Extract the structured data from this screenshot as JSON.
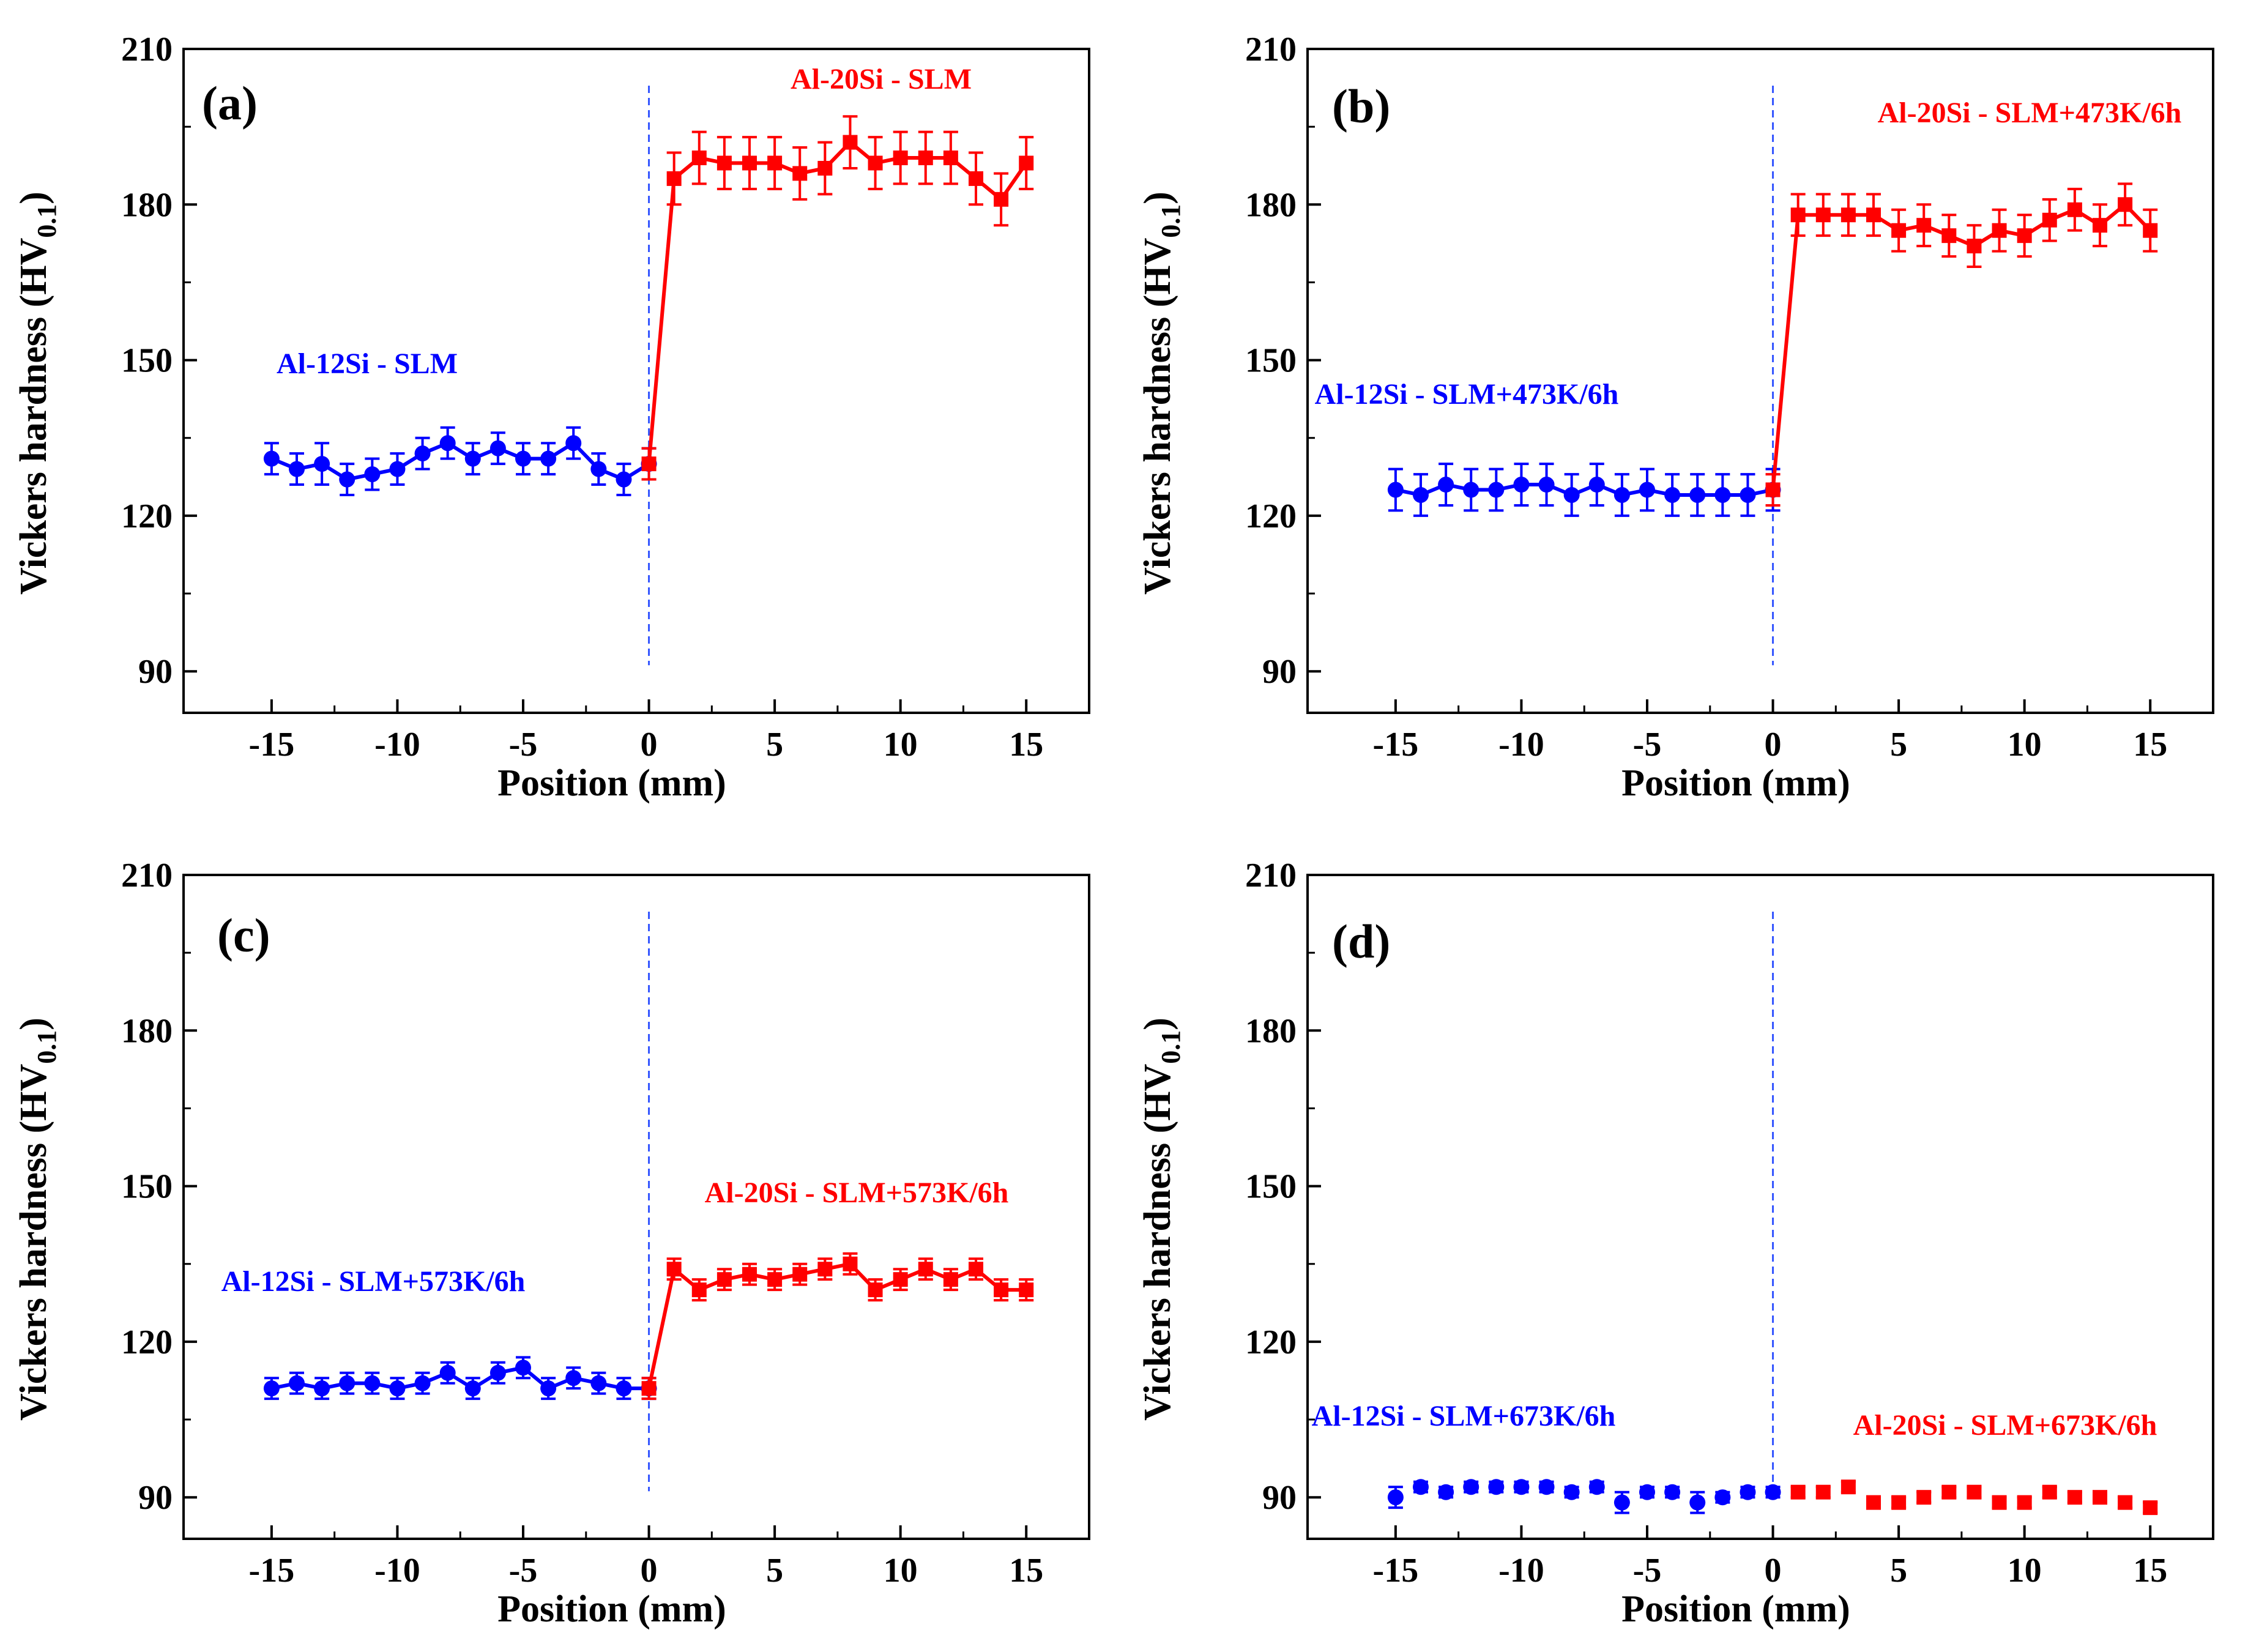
{
  "chart_data": [
    {
      "type": "line",
      "panel_tag": "(a)",
      "xlabel": "Position (mm)",
      "ylabel_main": "Vickers hardness (HV",
      "ylabel_sub": "0.1",
      "ylabel_close": ")",
      "xlim": [
        -18.5,
        17.5
      ],
      "ylim": [
        82,
        210
      ],
      "xticks": [
        -15,
        -10,
        -5,
        0,
        5,
        10,
        15
      ],
      "yticks": [
        90,
        120,
        150,
        180,
        210
      ],
      "grid": false,
      "divider_x": 0,
      "series": [
        {
          "name": "Al-12Si - SLM",
          "color": "#0000ff",
          "marker": "circle",
          "x": [
            -15,
            -14,
            -13,
            -12,
            -11,
            -10,
            -9,
            -8,
            -7,
            -6,
            -5,
            -4,
            -3,
            -2,
            -1,
            0
          ],
          "values": [
            131,
            129,
            130,
            127,
            128,
            129,
            132,
            134,
            131,
            133,
            131,
            131,
            134,
            129,
            127,
            130
          ],
          "errors": [
            3,
            3,
            4,
            3,
            3,
            3,
            3,
            3,
            3,
            3,
            3,
            3,
            3,
            3,
            3,
            3
          ]
        },
        {
          "name": "Al-20Si - SLM",
          "color": "#ff0000",
          "marker": "square",
          "x": [
            0,
            1,
            2,
            3,
            4,
            5,
            6,
            7,
            8,
            9,
            10,
            11,
            12,
            13,
            14,
            15
          ],
          "values": [
            130,
            185,
            189,
            188,
            188,
            188,
            186,
            187,
            192,
            188,
            189,
            189,
            189,
            185,
            181,
            188
          ],
          "errors": [
            3,
            5,
            5,
            5,
            5,
            5,
            5,
            5,
            5,
            5,
            5,
            5,
            5,
            5,
            5,
            5
          ]
        }
      ]
    },
    {
      "type": "line",
      "panel_tag": "(b)",
      "xlabel": "Position (mm)",
      "ylabel_main": "Vickers hardness (HV",
      "ylabel_sub": "0.1",
      "ylabel_close": ")",
      "xlim": [
        -18.5,
        17.5
      ],
      "ylim": [
        82,
        210
      ],
      "xticks": [
        -15,
        -10,
        -5,
        0,
        5,
        10,
        15
      ],
      "yticks": [
        90,
        120,
        150,
        180,
        210
      ],
      "grid": false,
      "divider_x": 0,
      "series": [
        {
          "name": "Al-12Si - SLM+473K/6h",
          "color": "#0000ff",
          "marker": "circle",
          "x": [
            -15,
            -14,
            -13,
            -12,
            -11,
            -10,
            -9,
            -8,
            -7,
            -6,
            -5,
            -4,
            -3,
            -2,
            -1,
            0
          ],
          "values": [
            125,
            124,
            126,
            125,
            125,
            126,
            126,
            124,
            126,
            124,
            125,
            124,
            124,
            124,
            124,
            125
          ],
          "errors": [
            4,
            4,
            4,
            4,
            4,
            4,
            4,
            4,
            4,
            4,
            4,
            4,
            4,
            4,
            4,
            4
          ]
        },
        {
          "name": "Al-20Si - SLM+473K/6h",
          "color": "#ff0000",
          "marker": "square",
          "x": [
            0,
            1,
            2,
            3,
            4,
            5,
            6,
            7,
            8,
            9,
            10,
            11,
            12,
            13,
            14,
            15
          ],
          "values": [
            125,
            178,
            178,
            178,
            178,
            175,
            176,
            174,
            172,
            175,
            174,
            177,
            179,
            176,
            180,
            175
          ],
          "errors": [
            3,
            4,
            4,
            4,
            4,
            4,
            4,
            4,
            4,
            4,
            4,
            4,
            4,
            4,
            4,
            4
          ]
        }
      ]
    },
    {
      "type": "line",
      "panel_tag": "(c)",
      "xlabel": "Position (mm)",
      "ylabel_main": "Vickers hardness (HV",
      "ylabel_sub": "0.1",
      "ylabel_close": ")",
      "xlim": [
        -18.5,
        17.5
      ],
      "ylim": [
        82,
        210
      ],
      "xticks": [
        -15,
        -10,
        -5,
        0,
        5,
        10,
        15
      ],
      "yticks": [
        90,
        120,
        150,
        180,
        210
      ],
      "grid": false,
      "divider_x": 0,
      "series": [
        {
          "name": "Al-12Si - SLM+573K/6h",
          "color": "#0000ff",
          "marker": "circle",
          "x": [
            -15,
            -14,
            -13,
            -12,
            -11,
            -10,
            -9,
            -8,
            -7,
            -6,
            -5,
            -4,
            -3,
            -2,
            -1,
            0
          ],
          "values": [
            111,
            112,
            111,
            112,
            112,
            111,
            112,
            114,
            111,
            114,
            115,
            111,
            113,
            112,
            111,
            111
          ],
          "errors": [
            2,
            2,
            2,
            2,
            2,
            2,
            2,
            2,
            2,
            2,
            2,
            2,
            2,
            2,
            2,
            2
          ]
        },
        {
          "name": "Al-20Si - SLM+573K/6h",
          "color": "#ff0000",
          "marker": "square",
          "x": [
            0,
            1,
            2,
            3,
            4,
            5,
            6,
            7,
            8,
            9,
            10,
            11,
            12,
            13,
            14,
            15
          ],
          "values": [
            111,
            134,
            130,
            132,
            133,
            132,
            133,
            134,
            135,
            130,
            132,
            134,
            132,
            134,
            130,
            130
          ],
          "errors": [
            2,
            2,
            2,
            2,
            2,
            2,
            2,
            2,
            2,
            2,
            2,
            2,
            2,
            2,
            2,
            2
          ]
        }
      ]
    },
    {
      "type": "line",
      "panel_tag": "(d)",
      "xlabel": "Position (mm)",
      "ylabel_main": "Vickers hardness (HV",
      "ylabel_sub": "0.1",
      "ylabel_close": ")",
      "xlim": [
        -18.5,
        17.5
      ],
      "ylim": [
        82,
        210
      ],
      "xticks": [
        -15,
        -10,
        -5,
        0,
        5,
        10,
        15
      ],
      "yticks": [
        90,
        120,
        150,
        180,
        210
      ],
      "grid": false,
      "divider_x": 0,
      "series": [
        {
          "name": "Al-12Si - SLM+673K/6h",
          "color": "#0000ff",
          "marker": "circle",
          "line": false,
          "x": [
            -15,
            -14,
            -13,
            -12,
            -11,
            -10,
            -9,
            -8,
            -7,
            -6,
            -5,
            -4,
            -3,
            -2,
            -1,
            0
          ],
          "values": [
            90,
            92,
            91,
            92,
            92,
            92,
            92,
            91,
            92,
            89,
            91,
            91,
            89,
            90,
            91,
            91
          ],
          "errors": [
            2,
            1,
            1,
            1,
            1,
            1,
            1,
            1,
            1,
            2,
            1,
            1,
            2,
            1,
            1,
            1
          ]
        },
        {
          "name": "Al-20Si - SLM+673K/6h",
          "color": "#ff0000",
          "marker": "square",
          "line": false,
          "x": [
            1,
            2,
            3,
            4,
            5,
            6,
            7,
            8,
            9,
            10,
            11,
            12,
            13,
            14,
            15
          ],
          "values": [
            91,
            91,
            92,
            89,
            89,
            90,
            91,
            91,
            89,
            89,
            91,
            90,
            90,
            89,
            88
          ],
          "errors": [
            1,
            1,
            1,
            1,
            1,
            1,
            1,
            1,
            1,
            1,
            1,
            1,
            1,
            1,
            1
          ]
        }
      ]
    }
  ]
}
